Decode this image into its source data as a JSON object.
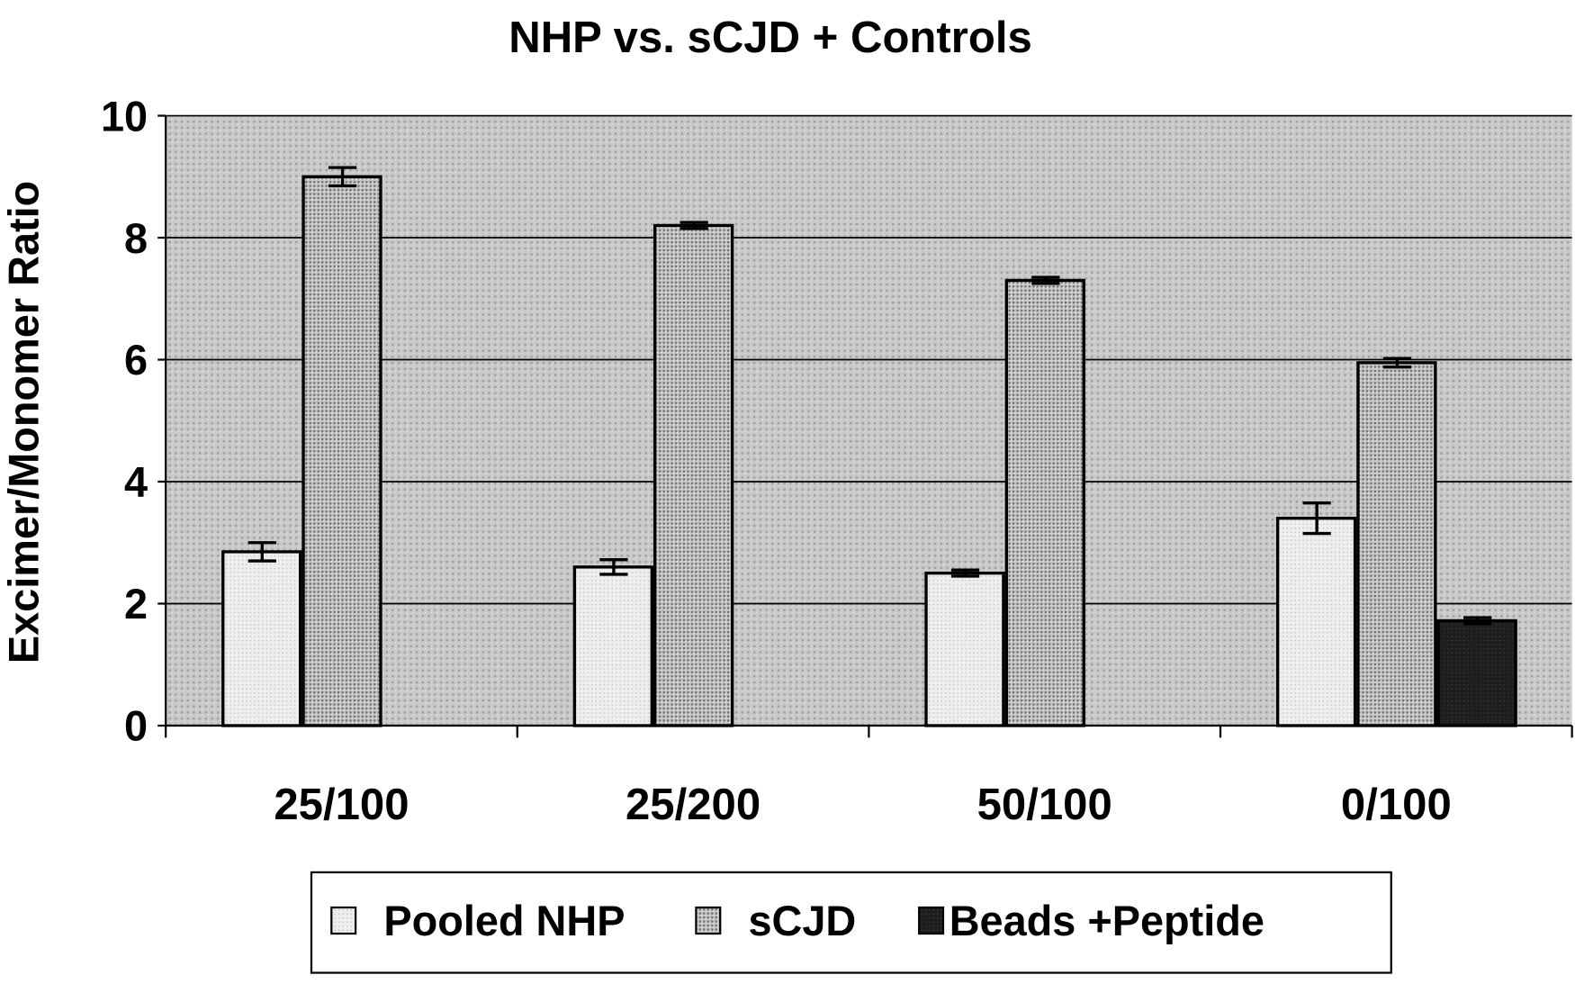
{
  "chart_data": {
    "type": "bar",
    "title": "NHP vs. sCJD + Controls",
    "xlabel": "",
    "ylabel": "Excimer/Monomer Ratio",
    "ylim": [
      0,
      10
    ],
    "yticks": [
      0,
      2,
      4,
      6,
      8,
      10
    ],
    "grid": true,
    "legend_position": "bottom",
    "categories": [
      "25/100",
      "25/200",
      "50/100",
      "0/100"
    ],
    "series": [
      {
        "name": "Pooled NHP",
        "values": [
          2.85,
          2.6,
          2.5,
          3.4
        ],
        "errors": [
          0.15,
          0.12,
          0.05,
          0.25
        ],
        "color": "#ececec"
      },
      {
        "name": "sCJD",
        "values": [
          9.0,
          8.2,
          7.3,
          5.95
        ],
        "errors": [
          0.15,
          0.05,
          0.05,
          0.07
        ],
        "color": "#b0b0b0"
      },
      {
        "name": "Beads +Peptide",
        "values": [
          null,
          null,
          null,
          1.72
        ],
        "errors": [
          null,
          null,
          null,
          0.05
        ],
        "color": "#1e1e1e"
      }
    ]
  }
}
